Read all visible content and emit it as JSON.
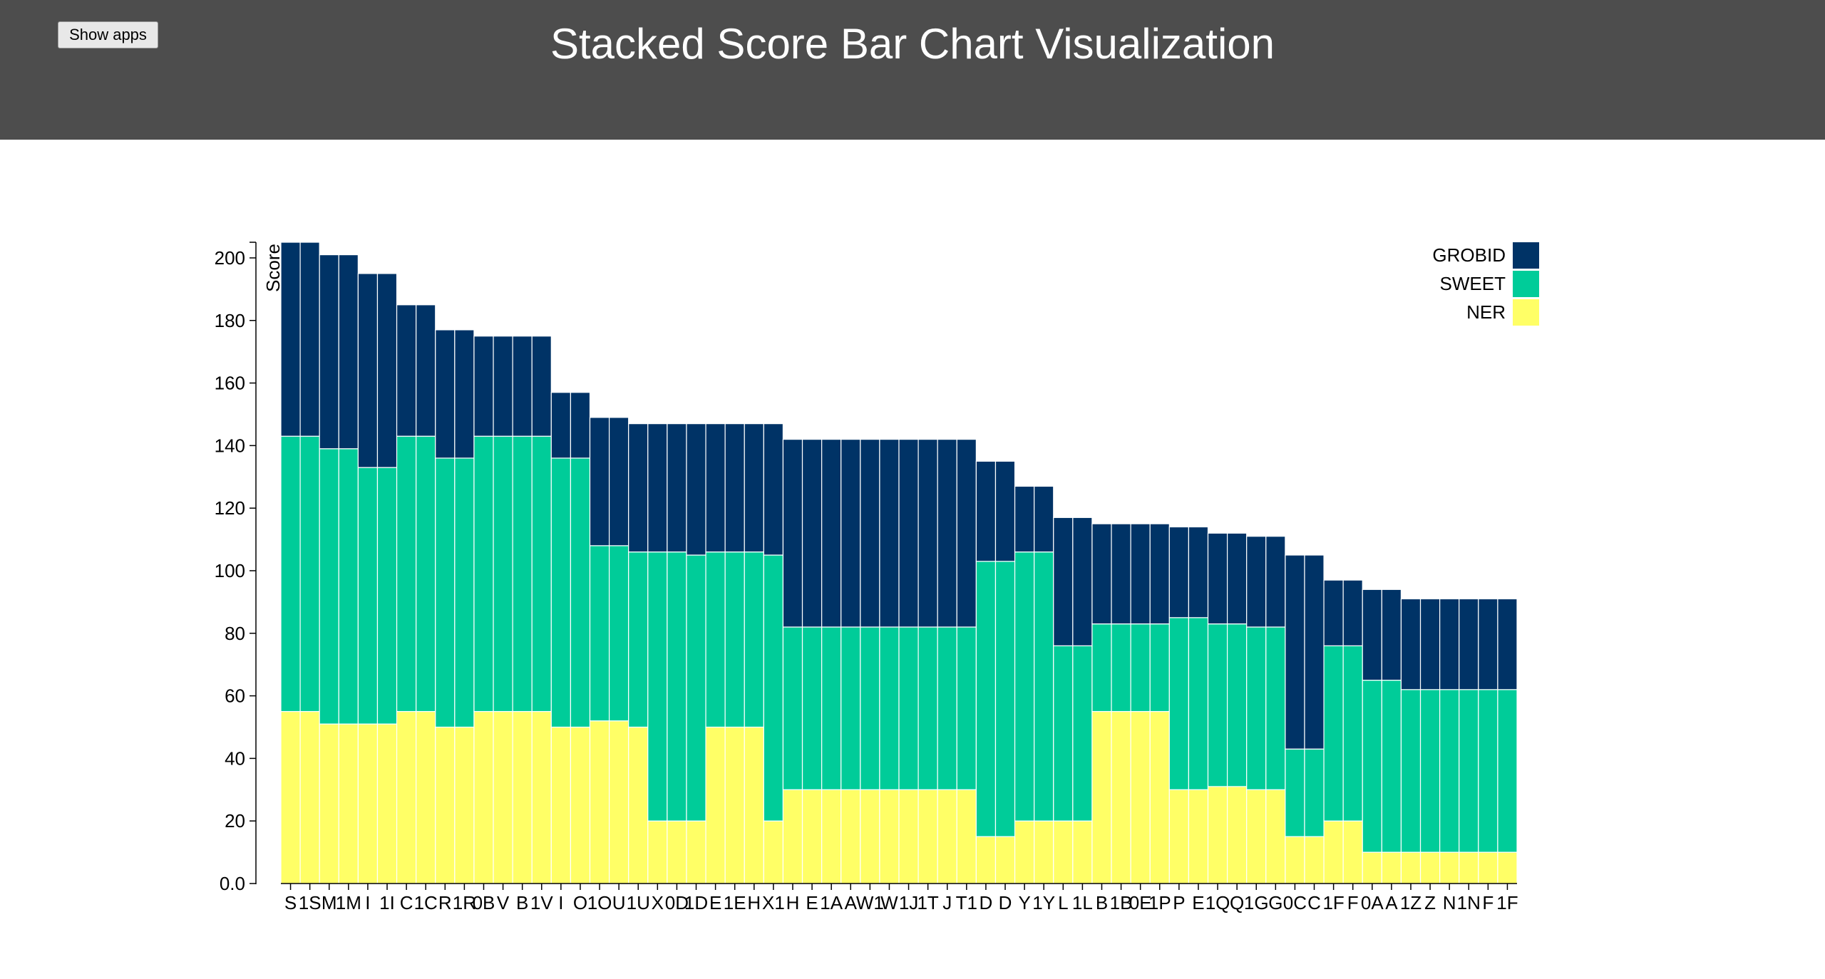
{
  "header": {
    "show_apps_label": "Show apps",
    "title": "Stacked Score Bar Chart Visualization",
    "background": "#4d4d4d"
  },
  "chart_data": {
    "type": "bar",
    "stacked": true,
    "title": "",
    "xlabel": "",
    "ylabel": "Score",
    "ylim": [
      0,
      205
    ],
    "yticks": [
      "0.0",
      "20",
      "40",
      "60",
      "80",
      "100",
      "120",
      "140",
      "160",
      "180",
      "200"
    ],
    "legend_position": "top-right",
    "grid": false,
    "categories": [
      "S",
      "1S",
      "M",
      "1M",
      "I",
      "1I",
      "C",
      "1C",
      "R",
      "1R",
      "0B",
      "V",
      "B",
      "1V",
      "I",
      "O",
      "1O",
      "U",
      "1U",
      "X",
      "0D",
      "1D",
      "E",
      "1E",
      "H",
      "X1",
      "H",
      "E",
      "1A",
      "A",
      "W1",
      "W",
      "1J",
      "1T",
      "J",
      "T1",
      "D",
      "D",
      "Y",
      "1Y",
      "L",
      "1L",
      "B",
      "1B",
      "0E",
      "1P",
      "P",
      "E",
      "1Q",
      "Q",
      "1G",
      "G",
      "0C",
      "C",
      "1F",
      "F",
      "0A",
      "A",
      "1Z",
      "Z",
      "N",
      "1N",
      "F",
      "1F"
    ],
    "series": [
      {
        "name": "NER",
        "color": "#ffff66",
        "values": [
          55,
          55,
          51,
          51,
          51,
          51,
          55,
          55,
          50,
          50,
          55,
          55,
          55,
          55,
          50,
          50,
          52,
          52,
          50,
          20,
          20,
          20,
          50,
          50,
          50,
          20,
          30,
          30,
          30,
          30,
          30,
          30,
          30,
          30,
          30,
          30,
          15,
          15,
          20,
          20,
          20,
          20,
          55,
          55,
          55,
          55,
          30,
          30,
          31,
          31,
          30,
          30,
          15,
          15,
          20,
          20,
          10,
          10,
          10,
          10,
          10,
          10,
          10,
          10
        ]
      },
      {
        "name": "SWEET",
        "color": "#00cc99",
        "values": [
          88,
          88,
          88,
          88,
          82,
          82,
          88,
          88,
          86,
          86,
          88,
          88,
          88,
          88,
          86,
          86,
          56,
          56,
          56,
          86,
          86,
          85,
          56,
          56,
          56,
          85,
          52,
          52,
          52,
          52,
          52,
          52,
          52,
          52,
          52,
          52,
          88,
          88,
          86,
          86,
          56,
          56,
          28,
          28,
          28,
          28,
          55,
          55,
          52,
          52,
          52,
          52,
          28,
          28,
          56,
          56,
          55,
          55,
          52,
          52,
          52,
          52,
          52,
          52
        ]
      },
      {
        "name": "GROBID",
        "color": "#003366",
        "values": [
          62,
          62,
          62,
          62,
          62,
          62,
          42,
          42,
          41,
          41,
          32,
          32,
          32,
          32,
          21,
          21,
          41,
          41,
          41,
          41,
          41,
          42,
          41,
          41,
          41,
          42,
          60,
          60,
          60,
          60,
          60,
          60,
          60,
          60,
          60,
          60,
          32,
          32,
          21,
          21,
          41,
          41,
          32,
          32,
          32,
          32,
          29,
          29,
          29,
          29,
          29,
          29,
          62,
          62,
          21,
          21,
          29,
          29,
          29,
          29,
          29,
          29,
          29,
          29
        ]
      }
    ]
  }
}
